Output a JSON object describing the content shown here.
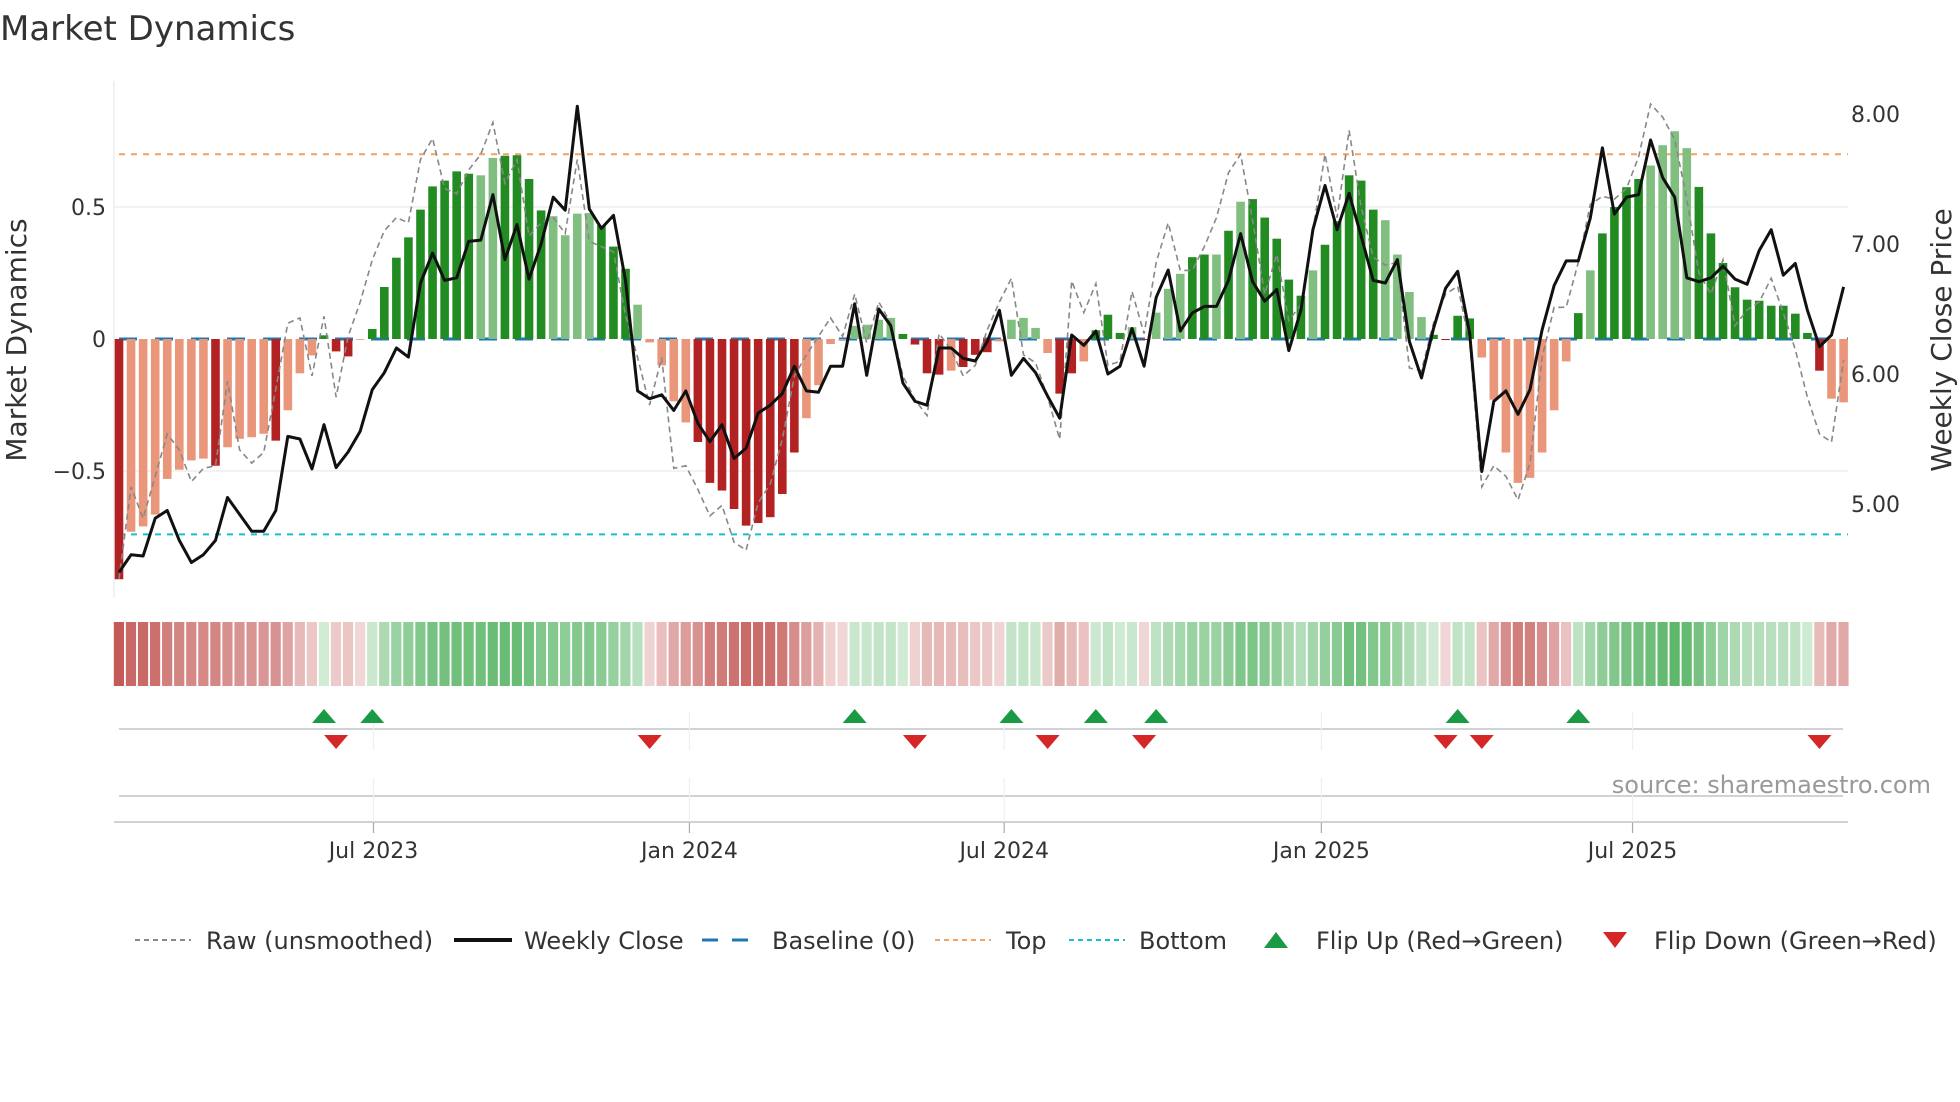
{
  "chart_data": {
    "type": "bar",
    "title": "Market Dynamics",
    "ylabel": "Market Dynamics",
    "y2label": "Weekly Close Price",
    "ylim": [
      -0.95,
      0.95
    ],
    "y2lim": [
      4.3,
      8.3
    ],
    "yticks": [
      {
        "v": 0.5,
        "label": "0.5"
      },
      {
        "v": 0,
        "label": "0"
      },
      {
        "v": -0.5,
        "label": "−0.5"
      }
    ],
    "y2ticks": [
      {
        "v": 8,
        "label": "8.00"
      },
      {
        "v": 7,
        "label": "7.00"
      },
      {
        "v": 6,
        "label": "6.00"
      },
      {
        "v": 5,
        "label": "5.00"
      }
    ],
    "x_unit": "week index",
    "xticks": [
      {
        "v": 21.1,
        "label": "Jul 2023"
      },
      {
        "v": 47.3,
        "label": "Jan 2024"
      },
      {
        "v": 73.4,
        "label": "Jul 2024"
      },
      {
        "v": 99.7,
        "label": "Jan 2025"
      },
      {
        "v": 125.5,
        "label": "Jul 2025"
      }
    ],
    "levels": {
      "baseline": 0,
      "top": 0.7,
      "bottom": -0.74
    },
    "dynamics": [
      -0.91,
      -0.73,
      -0.71,
      -0.665,
      -0.53,
      -0.495,
      -0.46,
      -0.453,
      -0.48,
      -0.41,
      -0.378,
      -0.372,
      -0.359,
      -0.385,
      -0.27,
      -0.13,
      -0.062,
      0.014,
      -0.047,
      -0.066,
      -0.003,
      0.038,
      0.197,
      0.308,
      0.385,
      0.49,
      0.578,
      0.6,
      0.635,
      0.626,
      0.62,
      0.686,
      0.694,
      0.696,
      0.606,
      0.487,
      0.465,
      0.393,
      0.475,
      0.477,
      0.43,
      0.35,
      0.266,
      0.13,
      -0.013,
      -0.1,
      -0.236,
      -0.316,
      -0.39,
      -0.545,
      -0.574,
      -0.644,
      -0.707,
      -0.697,
      -0.675,
      -0.587,
      -0.43,
      -0.3,
      -0.175,
      -0.019,
      -0.004,
      0.05,
      0.054,
      0.073,
      0.08,
      0.019,
      -0.021,
      -0.13,
      -0.135,
      -0.12,
      -0.106,
      -0.06,
      -0.05,
      -0.009,
      0.073,
      0.08,
      0.042,
      -0.053,
      -0.207,
      -0.13,
      -0.085,
      0.033,
      0.092,
      0.023,
      0.045,
      -0.004,
      0.1,
      0.19,
      0.247,
      0.31,
      0.32,
      0.32,
      0.41,
      0.52,
      0.53,
      0.46,
      0.38,
      0.225,
      0.164,
      0.26,
      0.357,
      0.446,
      0.62,
      0.6,
      0.49,
      0.45,
      0.32,
      0.178,
      0.083,
      0.016,
      -0.004,
      0.088,
      0.078,
      -0.07,
      -0.23,
      -0.43,
      -0.545,
      -0.526,
      -0.43,
      -0.27,
      -0.085,
      0.098,
      0.26,
      0.4,
      0.5,
      0.575,
      0.606,
      0.657,
      0.734,
      0.787,
      0.723,
      0.576,
      0.4,
      0.288,
      0.196,
      0.149,
      0.145,
      0.126,
      0.126,
      0.096,
      0.023,
      -0.12,
      -0.226,
      -0.24
    ],
    "strength": "dllllllldlllldllldddldddddddddllddddlllldddllllldddddddddllllllllddddldddlllllddldddldlllddldldddddldddddllllddddlllllllldlddddlllldddddddddddllllllllldlldd",
    "raw": [
      -0.91,
      -0.56,
      -0.68,
      -0.52,
      -0.36,
      -0.42,
      -0.54,
      -0.49,
      -0.48,
      -0.16,
      -0.42,
      -0.47,
      -0.43,
      -0.19,
      0.06,
      0.08,
      -0.14,
      0.086,
      -0.22,
      0.01,
      0.14,
      0.3,
      0.41,
      0.46,
      0.44,
      0.68,
      0.76,
      0.57,
      0.55,
      0.64,
      0.7,
      0.82,
      0.59,
      0.68,
      0.39,
      0.44,
      0.46,
      0.4,
      0.68,
      0.37,
      0.35,
      0.33,
      0.09,
      -0.07,
      -0.25,
      -0.07,
      -0.49,
      -0.48,
      -0.57,
      -0.67,
      -0.63,
      -0.77,
      -0.8,
      -0.62,
      -0.55,
      -0.38,
      -0.14,
      -0.06,
      0.01,
      0.08,
      0.01,
      0.17,
      -0.015,
      0.14,
      0.06,
      -0.14,
      -0.23,
      -0.29,
      0.02,
      -0.04,
      -0.14,
      -0.1,
      0.035,
      0.14,
      0.23,
      -0.06,
      -0.09,
      -0.22,
      -0.38,
      0.22,
      0.1,
      0.21,
      -0.1,
      -0.085,
      0.18,
      0.02,
      0.29,
      0.44,
      0.26,
      0.26,
      0.35,
      0.46,
      0.63,
      0.7,
      0.45,
      0.17,
      0.32,
      0.07,
      0.13,
      0.41,
      0.7,
      0.46,
      0.79,
      0.5,
      0.31,
      0.28,
      0.29,
      -0.11,
      -0.12,
      0.06,
      0.17,
      0.2,
      -0.015,
      -0.56,
      -0.48,
      -0.52,
      -0.61,
      -0.47,
      -0.07,
      0.12,
      0.12,
      0.29,
      0.51,
      0.54,
      0.53,
      0.57,
      0.69,
      0.89,
      0.84,
      0.755,
      0.53,
      0.25,
      0.17,
      0.3,
      0.05,
      0.11,
      0.14,
      0.23,
      0.1,
      -0.04,
      -0.22,
      -0.36,
      -0.39,
      -0.08
    ],
    "price": [
      4.475,
      4.61,
      4.6,
      4.89,
      4.95,
      4.72,
      4.55,
      4.61,
      4.72,
      5.05,
      4.92,
      4.79,
      4.79,
      4.95,
      5.52,
      5.5,
      5.27,
      5.61,
      5.28,
      5.4,
      5.56,
      5.88,
      6.01,
      6.2,
      6.13,
      6.7,
      6.93,
      6.72,
      6.74,
      7.02,
      7.03,
      7.38,
      6.88,
      7.15,
      6.73,
      7.0,
      7.36,
      7.26,
      8.06,
      7.27,
      7.12,
      7.22,
      6.72,
      5.87,
      5.81,
      5.84,
      5.72,
      5.87,
      5.62,
      5.48,
      5.61,
      5.35,
      5.43,
      5.7,
      5.76,
      5.85,
      6.06,
      5.87,
      5.86,
      6.06,
      6.06,
      6.54,
      5.99,
      6.5,
      6.37,
      5.93,
      5.79,
      5.76,
      6.2,
      6.2,
      6.12,
      6.1,
      6.25,
      6.49,
      5.99,
      6.12,
      6.01,
      5.83,
      5.66,
      6.3,
      6.22,
      6.33,
      6.0,
      6.06,
      6.35,
      6.06,
      6.59,
      6.8,
      6.33,
      6.47,
      6.52,
      6.52,
      6.72,
      7.08,
      6.71,
      6.56,
      6.65,
      6.18,
      6.49,
      7.11,
      7.45,
      7.11,
      7.39,
      7.06,
      6.72,
      6.7,
      6.88,
      6.25,
      5.97,
      6.35,
      6.66,
      6.79,
      6.31,
      5.25,
      5.79,
      5.87,
      5.69,
      5.88,
      6.34,
      6.68,
      6.87,
      6.87,
      7.2,
      7.74,
      7.23,
      7.36,
      7.38,
      7.8,
      7.51,
      7.36,
      6.74,
      6.71,
      6.74,
      6.83,
      6.73,
      6.69,
      6.95,
      7.11,
      6.76,
      6.85,
      6.49,
      6.21,
      6.3,
      6.67
    ],
    "flip_up": [
      18,
      22,
      62,
      75,
      82,
      87,
      112,
      122
    ],
    "flip_down": [
      19,
      45,
      67,
      78,
      86,
      111,
      114,
      142
    ],
    "legend": {
      "placement": "bottom",
      "items": [
        {
          "key": "raw",
          "label": "Raw (unsmoothed)"
        },
        {
          "key": "close",
          "label": "Weekly Close"
        },
        {
          "key": "baseline",
          "label": "Baseline (0)"
        },
        {
          "key": "top",
          "label": "Top"
        },
        {
          "key": "bottom",
          "label": "Bottom"
        },
        {
          "key": "up",
          "label": "Flip Up (Red→Green)"
        },
        {
          "key": "down",
          "label": "Flip Down (Green→Red)"
        }
      ]
    },
    "source": "source: sharemaestro.com"
  },
  "colors": {
    "green_strong": "#228b22",
    "green_weak": "#80bf80",
    "red_strong": "#b22222",
    "red_weak": "#e9967a",
    "baseline": "#1f77b4",
    "top": "#f4a460",
    "bottom": "#17becf",
    "raw": "#888888",
    "close": "#111111",
    "flip_up": "#1a9a45",
    "flip_down": "#d62728",
    "heat_green": "#4caf5a",
    "heat_red": "#c0504d"
  }
}
